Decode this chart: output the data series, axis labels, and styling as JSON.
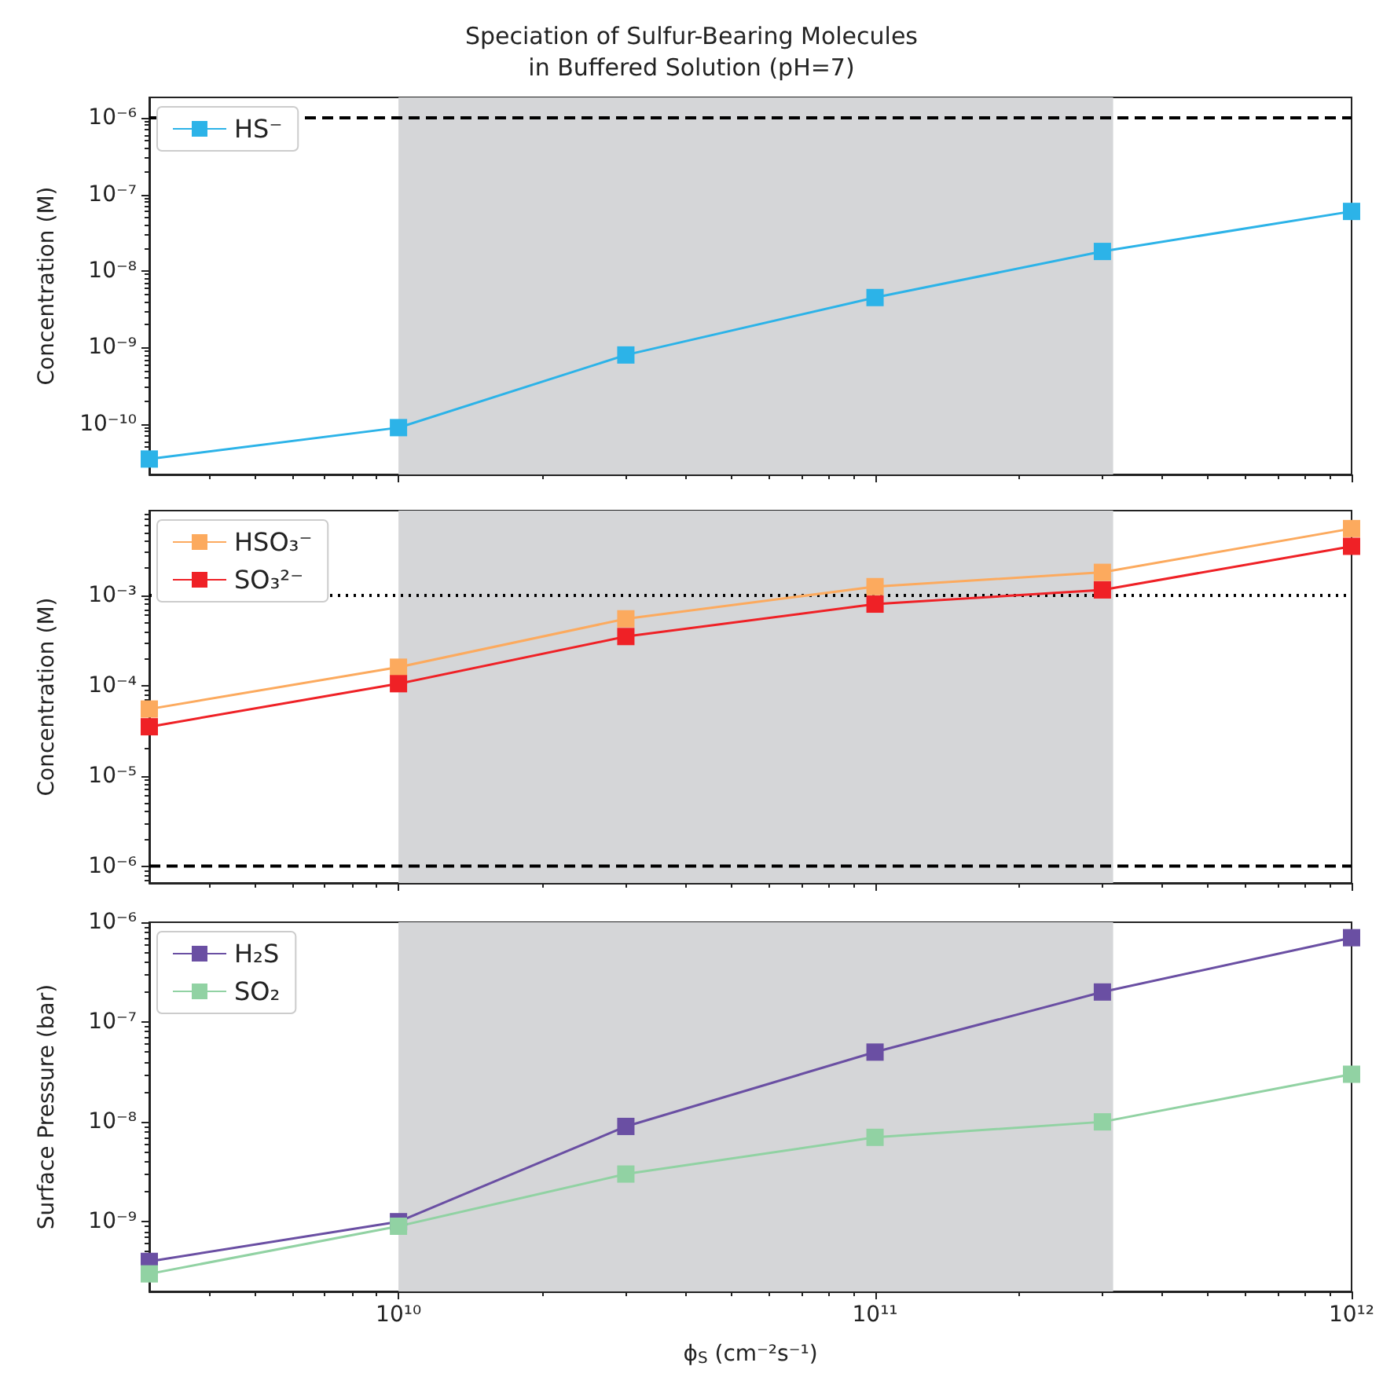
{
  "chart_data": [
    {
      "type": "line",
      "title": "Speciation of Sulfur-Bearing Molecules\nin Buffered Solution (pH=7)",
      "ylabel": "Concentration (M)",
      "x": [
        3000000000.0,
        10000000000.0,
        30000000000.0,
        100000000000.0,
        300000000000.0,
        1000000000000.0
      ],
      "log": "xy",
      "xlim": [
        3000000000.0,
        1000000000000.0
      ],
      "xticks": [
        {
          "value": 10000000000.0,
          "label": null
        },
        {
          "value": 100000000000.0,
          "label": null
        },
        {
          "value": 1000000000000.0,
          "label": null
        }
      ],
      "ylim": [
        2.2e-11,
        1.85e-06
      ],
      "yticks": [
        {
          "value": 1e-10,
          "label": "10⁻¹⁰"
        },
        {
          "value": 1e-09,
          "label": "10⁻⁹"
        },
        {
          "value": 1e-08,
          "label": "10⁻⁸"
        },
        {
          "value": 1e-07,
          "label": "10⁻⁷"
        },
        {
          "value": 1e-06,
          "label": "10⁻⁶"
        }
      ],
      "tick_labels": "y",
      "marker": "square",
      "legend": "top left",
      "grid": false,
      "series": [
        {
          "name": "HS⁻",
          "color": "#2cb3e8",
          "values": [
            3.5e-11,
            9e-11,
            8e-10,
            4.5e-09,
            1.8e-08,
            6e-08
          ]
        }
      ],
      "bands": [
        {
          "axis": "x",
          "from": 10000000000.0,
          "to": 316000000000.0,
          "color": "#d5d6d8"
        }
      ],
      "ref_lines": [
        {
          "axis": "y",
          "value": 1e-06,
          "line_style": "dashed",
          "color": "#000000"
        }
      ]
    },
    {
      "type": "line",
      "ylabel": "Concentration (M)",
      "x": [
        3000000000.0,
        10000000000.0,
        30000000000.0,
        100000000000.0,
        300000000000.0,
        1000000000000.0
      ],
      "log": "xy",
      "xlim": [
        3000000000.0,
        1000000000000.0
      ],
      "xticks": [
        {
          "value": 10000000000.0,
          "label": null
        },
        {
          "value": 100000000000.0,
          "label": null
        },
        {
          "value": 1000000000000.0,
          "label": null
        }
      ],
      "ylim": [
        6.5e-07,
        0.0087
      ],
      "yticks": [
        {
          "value": 1e-06,
          "label": "10⁻⁶"
        },
        {
          "value": 1e-05,
          "label": "10⁻⁵"
        },
        {
          "value": 0.0001,
          "label": "10⁻⁴"
        },
        {
          "value": 0.001,
          "label": "10⁻³"
        }
      ],
      "tick_labels": "y",
      "marker": "square",
      "legend": "top left",
      "grid": false,
      "series": [
        {
          "name": "HSO₃⁻",
          "color": "#fcaa5e",
          "values": [
            5.5e-05,
            0.00016,
            0.00055,
            0.00125,
            0.0018,
            0.0055
          ]
        },
        {
          "name": "SO₃²⁻",
          "color": "#ef2126",
          "values": [
            3.5e-05,
            0.000105,
            0.00035,
            0.0008,
            0.00115,
            0.0035
          ]
        }
      ],
      "bands": [
        {
          "axis": "x",
          "from": 10000000000.0,
          "to": 316000000000.0,
          "color": "#d5d6d8"
        }
      ],
      "ref_lines": [
        {
          "axis": "y",
          "value": 0.001,
          "line_style": "dotted",
          "color": "#000000"
        },
        {
          "axis": "y",
          "value": 1e-06,
          "line_style": "dashed",
          "color": "#000000"
        }
      ]
    },
    {
      "type": "line",
      "xlabel": "ϕ$_{S}$ (cm⁻²s⁻¹)",
      "ylabel": "Surface Pressure (bar)",
      "x": [
        3000000000.0,
        10000000000.0,
        30000000000.0,
        100000000000.0,
        300000000000.0,
        1000000000000.0
      ],
      "log": "xy",
      "xlim": [
        3000000000.0,
        1000000000000.0
      ],
      "xticks": [
        {
          "value": 10000000000.0,
          "label": "10¹⁰"
        },
        {
          "value": 100000000000.0,
          "label": "10¹¹"
        },
        {
          "value": 1000000000000.0,
          "label": "10¹²"
        }
      ],
      "ylim": [
        2e-10,
        1e-06
      ],
      "yticks": [
        {
          "value": 1e-09,
          "label": "10⁻⁹"
        },
        {
          "value": 1e-08,
          "label": "10⁻⁸"
        },
        {
          "value": 1e-07,
          "label": "10⁻⁷"
        },
        {
          "value": 1e-06,
          "label": "10⁻⁶"
        }
      ],
      "marker": "square",
      "legend": "top left",
      "grid": false,
      "series": [
        {
          "name": "H₂S",
          "color": "#6a4fa3",
          "values": [
            4e-10,
            1e-09,
            9e-09,
            5e-08,
            2e-07,
            7e-07
          ]
        },
        {
          "name": "SO₂",
          "color": "#91d2a3",
          "values": [
            3e-10,
            9e-10,
            3e-09,
            7e-09,
            1e-08,
            3e-08
          ]
        }
      ],
      "bands": [
        {
          "axis": "x",
          "from": 10000000000.0,
          "to": 316000000000.0,
          "color": "#d5d6d8"
        }
      ]
    }
  ]
}
